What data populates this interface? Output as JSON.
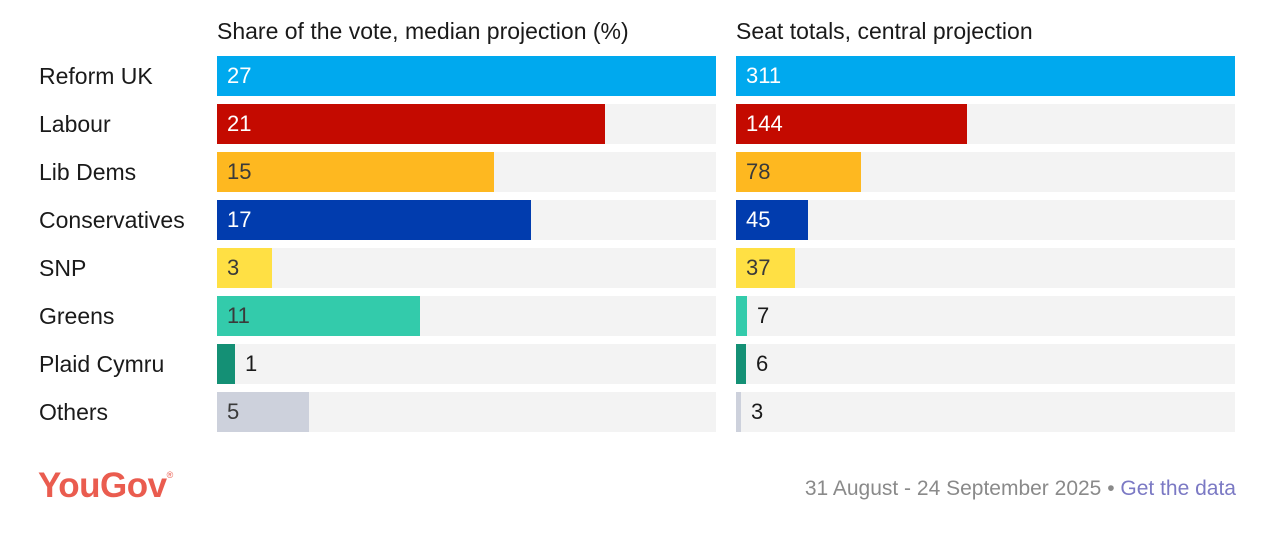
{
  "colors": {
    "track": "#f3f3f3",
    "Reform UK": "#00a9ee",
    "Labour": "#c40a00",
    "Lib Dems": "#feb820",
    "Conservatives": "#013cae",
    "SNP": "#ffe044",
    "Greens": "#33cbab",
    "Plaid Cymru": "#149075",
    "Others": "#cdd1dc"
  },
  "logo": {
    "text": "YouGov",
    "mark": "®"
  },
  "footer": {
    "date_range": "31 August - 24 September 2025",
    "separator": "•",
    "link_label": "Get the data"
  },
  "chart_data": [
    {
      "type": "bar",
      "orientation": "horizontal",
      "title": "Share of the vote, median projection (%)",
      "categories": [
        "Reform UK",
        "Labour",
        "Lib Dems",
        "Conservatives",
        "SNP",
        "Greens",
        "Plaid Cymru",
        "Others"
      ],
      "values": [
        27,
        21,
        15,
        17,
        3,
        11,
        1,
        5
      ],
      "xlim": [
        0,
        27
      ]
    },
    {
      "type": "bar",
      "orientation": "horizontal",
      "title": "Seat totals, central projection",
      "categories": [
        "Reform UK",
        "Labour",
        "Lib Dems",
        "Conservatives",
        "SNP",
        "Greens",
        "Plaid Cymru",
        "Others"
      ],
      "values": [
        311,
        144,
        78,
        45,
        37,
        7,
        6,
        3
      ],
      "xlim": [
        0,
        311
      ]
    }
  ]
}
